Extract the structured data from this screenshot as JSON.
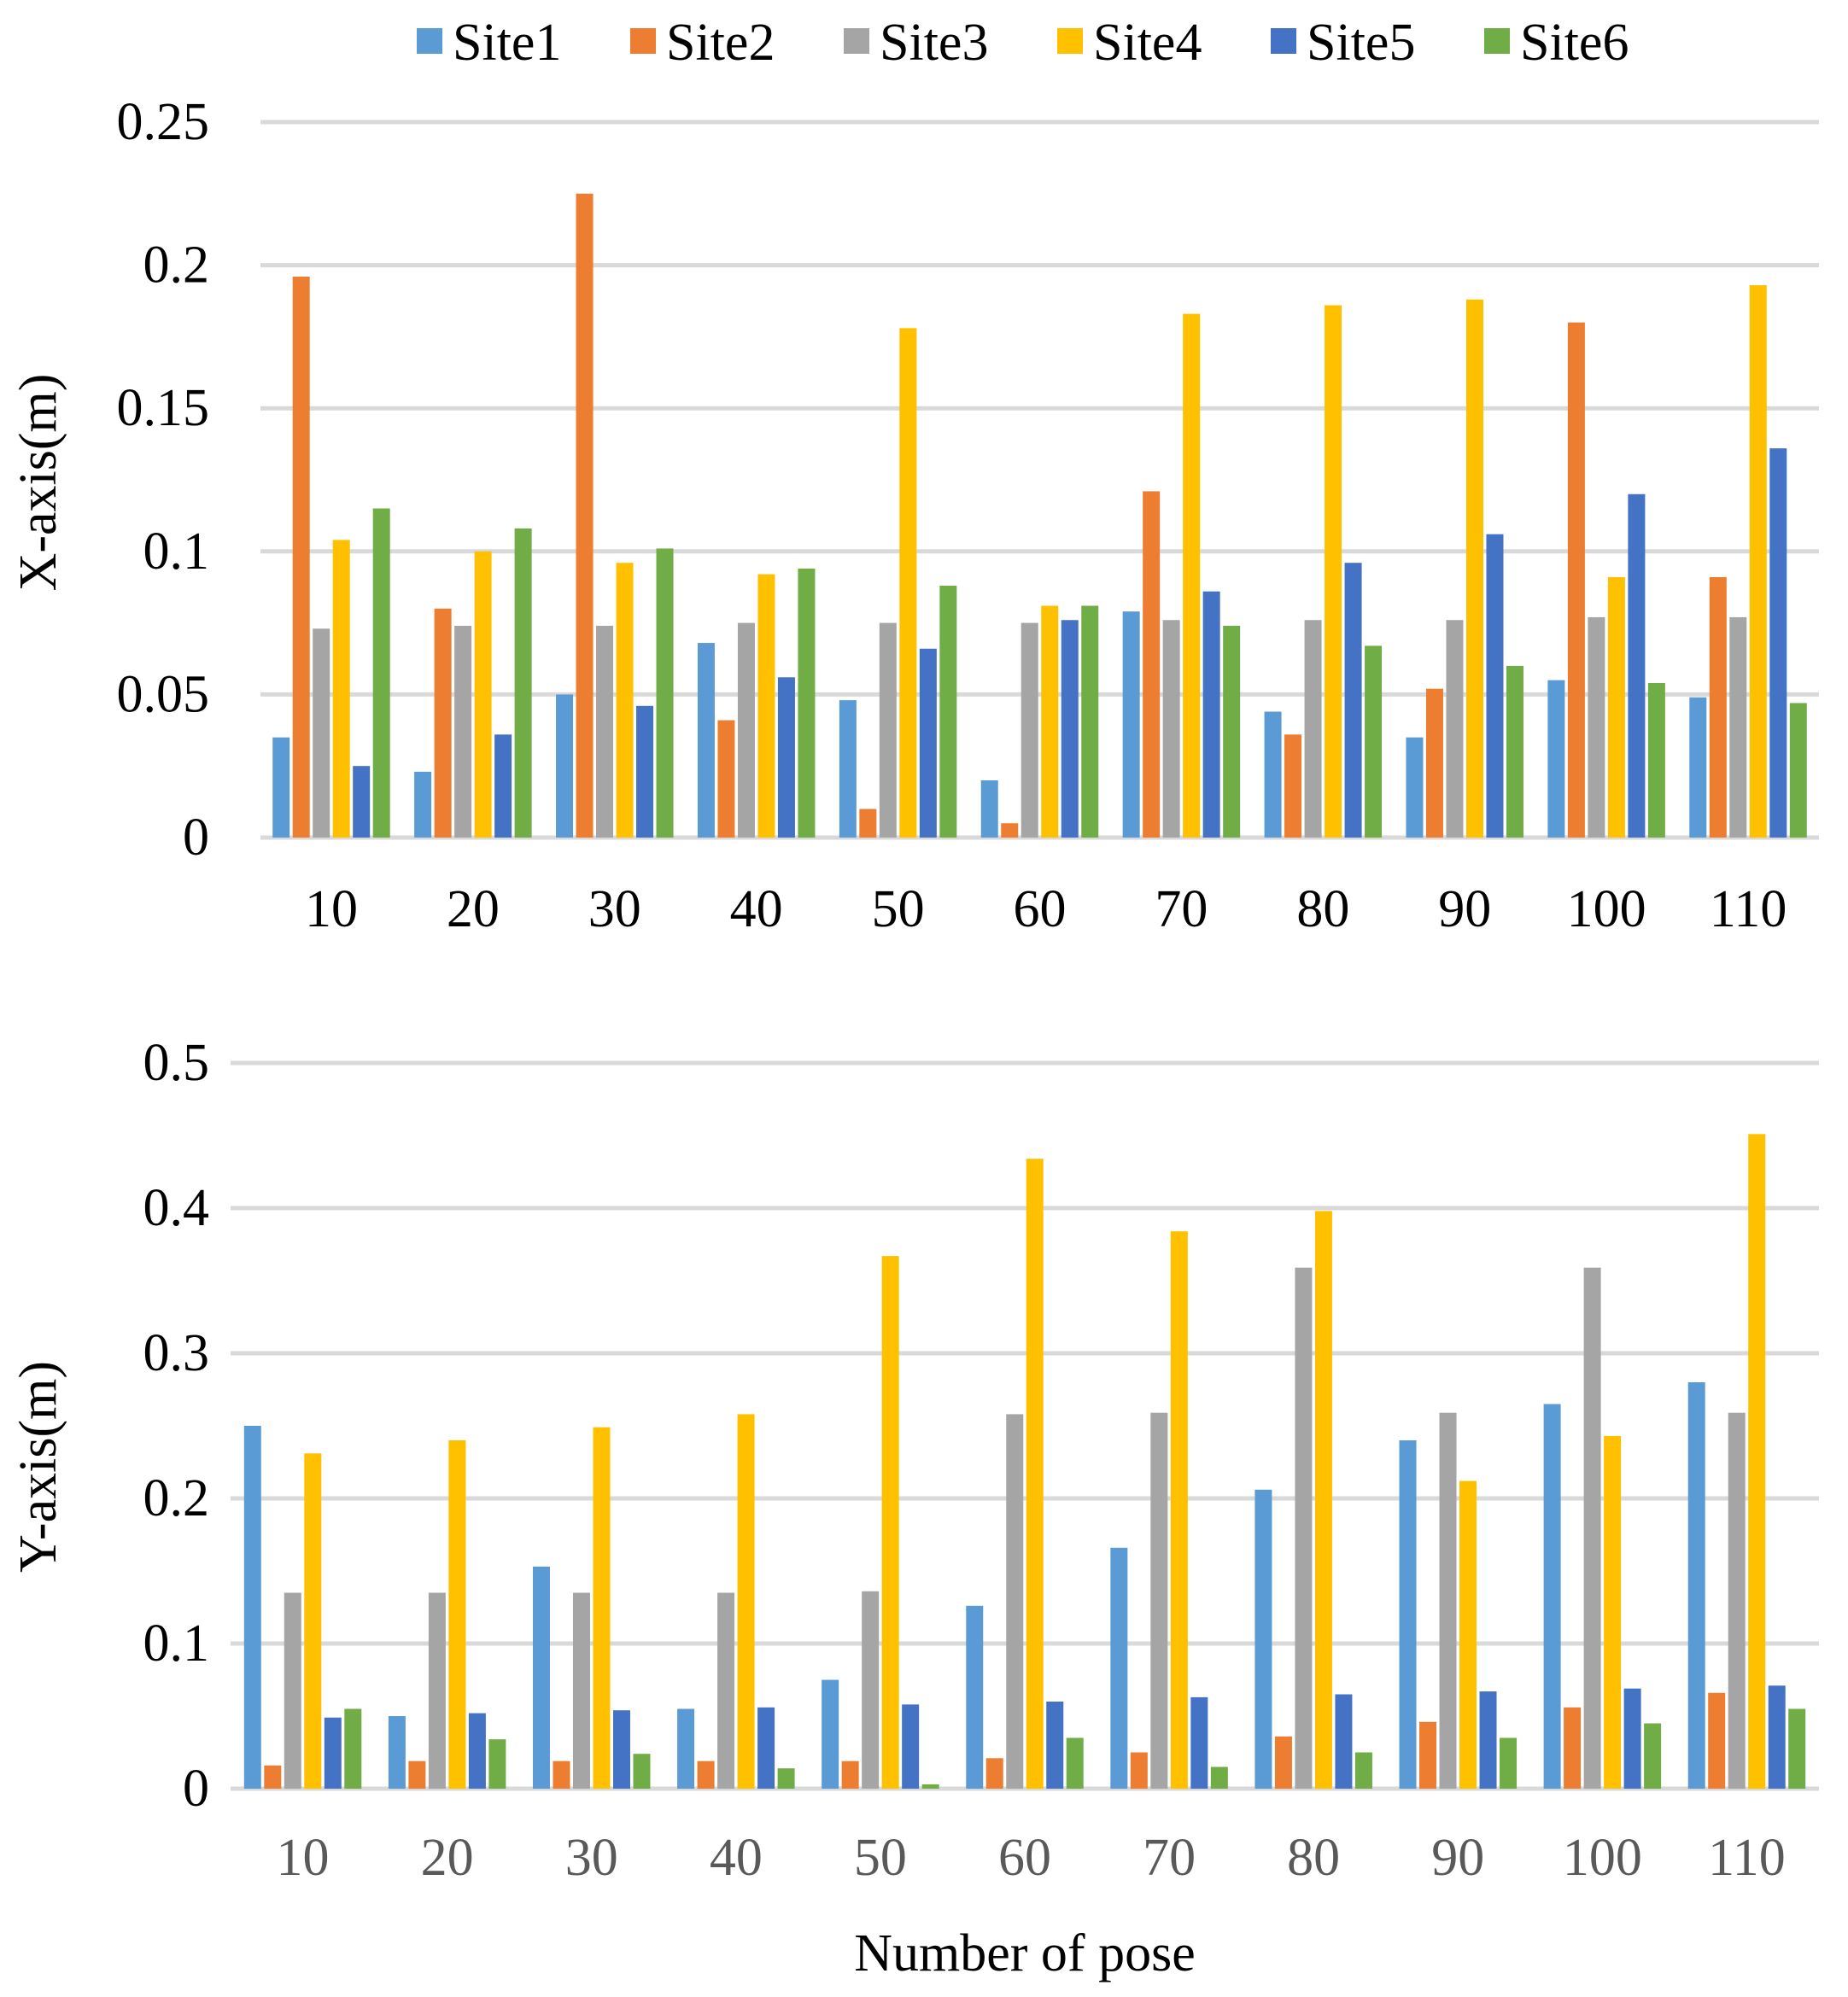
{
  "chart_data": [
    {
      "type": "bar",
      "title": "",
      "xlabel": "",
      "ylabel": "X-axis(m)",
      "ylim": [
        0,
        0.25
      ],
      "yticks": [
        "0",
        "0.05",
        "0.1",
        "0.15",
        "0.2",
        "0.25"
      ],
      "grid": true,
      "legend": "top-center",
      "categories": [
        "10",
        "20",
        "30",
        "40",
        "50",
        "60",
        "70",
        "80",
        "90",
        "100",
        "110"
      ],
      "series": [
        {
          "name": "Site1",
          "color": "#5B9BD5",
          "values": [
            0.035,
            0.023,
            0.05,
            0.068,
            0.048,
            0.02,
            0.079,
            0.044,
            0.035,
            0.055,
            0.049
          ]
        },
        {
          "name": "Site2",
          "color": "#ED7D31",
          "values": [
            0.196,
            0.08,
            0.225,
            0.041,
            0.01,
            0.005,
            0.121,
            0.036,
            0.052,
            0.18,
            0.091
          ]
        },
        {
          "name": "Site3",
          "color": "#A5A5A5",
          "values": [
            0.073,
            0.074,
            0.074,
            0.075,
            0.075,
            0.075,
            0.076,
            0.076,
            0.076,
            0.077,
            0.077
          ]
        },
        {
          "name": "Site4",
          "color": "#FFC000",
          "values": [
            0.104,
            0.1,
            0.096,
            0.092,
            0.178,
            0.081,
            0.183,
            0.186,
            0.188,
            0.091,
            0.193
          ]
        },
        {
          "name": "Site5",
          "color": "#4472C4",
          "values": [
            0.025,
            0.036,
            0.046,
            0.056,
            0.066,
            0.076,
            0.086,
            0.096,
            0.106,
            0.12,
            0.136
          ]
        },
        {
          "name": "Site6",
          "color": "#70AD47",
          "values": [
            0.115,
            0.108,
            0.101,
            0.094,
            0.088,
            0.081,
            0.074,
            0.067,
            0.06,
            0.054,
            0.047
          ]
        }
      ]
    },
    {
      "type": "bar",
      "title": "",
      "xlabel": "Number of pose",
      "ylabel": "Y-axis(m)",
      "ylim": [
        0,
        0.5
      ],
      "yticks": [
        "0",
        "0.1",
        "0.2",
        "0.3",
        "0.4",
        "0.5"
      ],
      "grid": true,
      "categories": [
        "10",
        "20",
        "30",
        "40",
        "50",
        "60",
        "70",
        "80",
        "90",
        "100",
        "110"
      ],
      "series": [
        {
          "name": "Site1",
          "color": "#5B9BD5",
          "values": [
            0.25,
            0.05,
            0.153,
            0.055,
            0.075,
            0.126,
            0.166,
            0.206,
            0.24,
            0.265,
            0.28
          ]
        },
        {
          "name": "Site2",
          "color": "#ED7D31",
          "values": [
            0.016,
            0.019,
            0.019,
            0.019,
            0.019,
            0.021,
            0.025,
            0.036,
            0.046,
            0.056,
            0.066
          ]
        },
        {
          "name": "Site3",
          "color": "#A5A5A5",
          "values": [
            0.135,
            0.135,
            0.135,
            0.135,
            0.136,
            0.258,
            0.259,
            0.359,
            0.259,
            0.359,
            0.259
          ]
        },
        {
          "name": "Site4",
          "color": "#FFC000",
          "values": [
            0.231,
            0.24,
            0.249,
            0.258,
            0.367,
            0.434,
            0.384,
            0.398,
            0.212,
            0.243,
            0.451
          ]
        },
        {
          "name": "Site5",
          "color": "#4472C4",
          "values": [
            0.049,
            0.052,
            0.054,
            0.056,
            0.058,
            0.06,
            0.063,
            0.065,
            0.067,
            0.069,
            0.071
          ]
        },
        {
          "name": "Site6",
          "color": "#70AD47",
          "values": [
            0.055,
            0.034,
            0.024,
            0.014,
            0.003,
            0.035,
            0.015,
            0.025,
            0.035,
            0.045,
            0.055
          ]
        }
      ]
    }
  ]
}
